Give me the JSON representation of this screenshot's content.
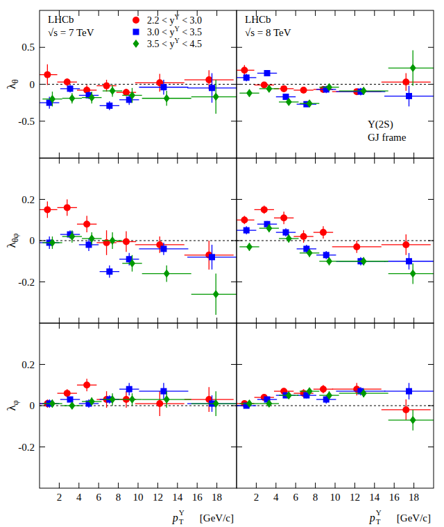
{
  "chart_data": [
    {
      "type": "scatter",
      "ylabel": "λθ",
      "labels": [
        "LHCb",
        "√s = 7 TeV"
      ],
      "legend": "top-right",
      "tick_labels": "y",
      "xlim": [
        0,
        20
      ],
      "xticks": [
        2,
        4,
        6,
        8,
        10,
        12,
        14,
        16,
        18
      ],
      "ylim": [
        -1,
        1
      ],
      "yticks": [
        -0.5,
        0,
        0.5
      ],
      "reference": 0,
      "series": [
        {
          "name": "2.2 < yΥ < 3.0",
          "color": "#ff0000",
          "marker": "circle",
          "x": [
            0.8,
            2.8,
            4.8,
            6.8,
            8.8,
            12.2,
            17.2
          ],
          "x_errors": [
            1,
            1,
            1,
            1,
            1,
            2.5,
            2.5
          ],
          "values": [
            0.13,
            0.03,
            -0.08,
            -0.02,
            -0.11,
            0.02,
            0.06
          ],
          "y_errors": [
            0.14,
            0.05,
            0.07,
            0.08,
            0.05,
            0.12,
            0.13
          ]
        },
        {
          "name": "3.0 < yΥ < 3.5",
          "color": "#0000ff",
          "marker": "square",
          "x": [
            1.0,
            3.1,
            5.0,
            7.1,
            9.1,
            12.6,
            17.5
          ],
          "x_errors": [
            1,
            1,
            1,
            1,
            1,
            2.5,
            2.5
          ],
          "values": [
            -0.25,
            -0.06,
            -0.15,
            -0.29,
            -0.21,
            -0.04,
            -0.05
          ],
          "y_errors": [
            0.08,
            0.05,
            0.05,
            0.06,
            0.07,
            0.1,
            0.2
          ]
        },
        {
          "name": "3.5 < yΥ < 4.5",
          "color": "#009900",
          "marker": "diamond",
          "x": [
            1.3,
            3.3,
            5.3,
            7.4,
            9.4,
            12.9,
            17.9
          ],
          "x_errors": [
            1,
            1,
            1,
            1,
            1,
            2.5,
            2.5
          ],
          "values": [
            -0.2,
            -0.19,
            -0.18,
            -0.09,
            -0.15,
            -0.19,
            -0.17
          ],
          "y_errors": [
            0.1,
            0.07,
            0.08,
            0.08,
            0.1,
            0.1,
            0.23
          ]
        }
      ]
    },
    {
      "type": "scatter",
      "labels": [
        "LHCb",
        "√s = 8 TeV"
      ],
      "notes": [
        "Υ(2S)",
        "GJ frame"
      ],
      "tick_labels": false,
      "xlim": [
        0,
        20
      ],
      "xticks": [
        2,
        4,
        6,
        8,
        10,
        12,
        14,
        16,
        18
      ],
      "ylim": [
        -1,
        1
      ],
      "yticks": [
        -0.5,
        0,
        0.5
      ],
      "reference": 0,
      "series": [
        {
          "color": "#ff0000",
          "marker": "circle",
          "x": [
            0.8,
            2.8,
            4.8,
            6.8,
            8.8,
            12.2,
            17.2
          ],
          "x_errors": [
            1,
            1,
            1,
            1,
            1,
            2.5,
            2.5
          ],
          "values": [
            0.19,
            -0.01,
            -0.06,
            -0.08,
            -0.07,
            -0.1,
            0.03
          ],
          "y_errors": [
            0.07,
            0.04,
            0.04,
            0.04,
            0.04,
            0.04,
            0.12
          ]
        },
        {
          "color": "#0000ff",
          "marker": "square",
          "x": [
            1.0,
            3.1,
            5.0,
            7.1,
            9.1,
            12.6,
            17.5
          ],
          "x_errors": [
            1,
            1,
            1,
            1,
            1,
            2.5,
            2.5
          ],
          "values": [
            0.09,
            0.15,
            -0.17,
            -0.27,
            -0.07,
            -0.1,
            -0.16
          ],
          "y_errors": [
            0.05,
            0.04,
            0.03,
            0.03,
            0.05,
            0.05,
            0.14
          ]
        },
        {
          "color": "#009900",
          "marker": "diamond",
          "x": [
            1.3,
            3.3,
            5.3,
            7.4,
            9.4,
            12.9,
            17.9
          ],
          "x_errors": [
            1,
            1,
            1,
            1,
            1,
            2.5,
            2.5
          ],
          "values": [
            -0.12,
            -0.06,
            -0.24,
            -0.26,
            -0.04,
            -0.09,
            0.22
          ],
          "y_errors": [
            0.05,
            0.03,
            0.03,
            0.04,
            0.04,
            0.05,
            0.24
          ]
        }
      ]
    },
    {
      "type": "scatter",
      "ylabel": "λθφ",
      "tick_labels": "y",
      "xlim": [
        0,
        20
      ],
      "xticks": [
        2,
        4,
        6,
        8,
        10,
        12,
        14,
        16,
        18
      ],
      "ylim": [
        -0.4,
        0.4
      ],
      "yticks": [
        -0.2,
        0,
        0.2
      ],
      "reference": 0,
      "series": [
        {
          "color": "#ff0000",
          "marker": "circle",
          "x": [
            0.8,
            2.8,
            4.8,
            6.8,
            8.8,
            12.2,
            17.2
          ],
          "x_errors": [
            1,
            1,
            1,
            1,
            1,
            2.5,
            2.5
          ],
          "values": [
            0.15,
            0.16,
            0.08,
            -0.01,
            -0.005,
            -0.02,
            -0.07
          ],
          "y_errors": [
            0.04,
            0.04,
            0.04,
            0.06,
            0.05,
            0.04,
            0.07
          ]
        },
        {
          "color": "#0000ff",
          "marker": "square",
          "x": [
            1.0,
            3.1,
            5.0,
            7.1,
            9.1,
            12.6,
            17.5
          ],
          "x_errors": [
            1,
            1,
            1,
            1,
            1,
            2.5,
            2.5
          ],
          "values": [
            -0.01,
            0.03,
            -0.02,
            -0.15,
            -0.09,
            -0.04,
            -0.08
          ],
          "y_errors": [
            0.03,
            0.02,
            0.03,
            0.03,
            0.03,
            0.03,
            0.06
          ]
        },
        {
          "color": "#009900",
          "marker": "diamond",
          "x": [
            1.3,
            3.3,
            5.3,
            7.4,
            9.4,
            12.9,
            17.9
          ],
          "x_errors": [
            1,
            1,
            1,
            1,
            1,
            2.5,
            2.5
          ],
          "values": [
            -0.01,
            0.02,
            0.01,
            0,
            -0.11,
            -0.16,
            -0.26
          ],
          "y_errors": [
            0.03,
            0.03,
            0.03,
            0.04,
            0.04,
            0.04,
            0.1
          ]
        }
      ]
    },
    {
      "type": "scatter",
      "tick_labels": false,
      "xlim": [
        0,
        20
      ],
      "xticks": [
        2,
        4,
        6,
        8,
        10,
        12,
        14,
        16,
        18
      ],
      "ylim": [
        -0.4,
        0.4
      ],
      "yticks": [
        -0.2,
        0,
        0.2
      ],
      "reference": 0,
      "series": [
        {
          "color": "#ff0000",
          "marker": "circle",
          "x": [
            0.8,
            2.8,
            4.8,
            6.8,
            8.8,
            12.2,
            17.2
          ],
          "x_errors": [
            1,
            1,
            1,
            1,
            1,
            2.5,
            2.5
          ],
          "values": [
            0.1,
            0.15,
            0.11,
            0.02,
            0.04,
            -0.03,
            -0.02
          ],
          "y_errors": [
            0.02,
            0.02,
            0.03,
            0.03,
            0.03,
            0.03,
            0.05
          ]
        },
        {
          "color": "#0000ff",
          "marker": "square",
          "x": [
            1.0,
            3.1,
            5.0,
            7.1,
            9.1,
            12.6,
            17.5
          ],
          "x_errors": [
            1,
            1,
            1,
            1,
            1,
            2.5,
            2.5
          ],
          "values": [
            0.05,
            0.08,
            0.04,
            -0.04,
            -0.07,
            -0.1,
            -0.1
          ],
          "y_errors": [
            0.02,
            0.015,
            0.02,
            0.02,
            0.02,
            0.02,
            0.04
          ]
        },
        {
          "color": "#009900",
          "marker": "diamond",
          "x": [
            1.3,
            3.3,
            5.3,
            7.4,
            9.4,
            12.9,
            17.9
          ],
          "x_errors": [
            1,
            1,
            1,
            1,
            1,
            2.5,
            2.5
          ],
          "values": [
            -0.03,
            0.06,
            0.01,
            -0.06,
            -0.1,
            -0.1,
            -0.16
          ],
          "y_errors": [
            0.02,
            0.02,
            0.02,
            0.02,
            0.02,
            0.02,
            0.05
          ]
        }
      ]
    },
    {
      "type": "scatter",
      "ylabel": "λφ",
      "tick_labels": true,
      "xlabel": {
        "text": "p",
        "sub": "T",
        "sup": "Υ",
        "unit": "[GeV/c]"
      },
      "xlim": [
        0,
        20
      ],
      "xticks": [
        2,
        4,
        6,
        8,
        10,
        12,
        14,
        16,
        18
      ],
      "ylim": [
        -0.4,
        0.4
      ],
      "yticks": [
        -0.2,
        0,
        0.2
      ],
      "reference": 0,
      "series": [
        {
          "color": "#ff0000",
          "marker": "circle",
          "x": [
            0.8,
            2.8,
            4.8,
            6.8,
            8.8,
            12.2,
            17.2
          ],
          "x_errors": [
            1,
            1,
            1,
            1,
            1,
            2.5,
            2.5
          ],
          "values": [
            0.01,
            0.06,
            0.1,
            0.03,
            0.03,
            0.01,
            0.03
          ],
          "y_errors": [
            0.02,
            0.02,
            0.03,
            0.04,
            0.04,
            0.06,
            0.06
          ]
        },
        {
          "color": "#0000ff",
          "marker": "square",
          "x": [
            1.0,
            3.1,
            5.0,
            7.1,
            9.1,
            12.6,
            17.5
          ],
          "x_errors": [
            1,
            1,
            1,
            1,
            1,
            2.5,
            2.5
          ],
          "values": [
            0.01,
            0.03,
            0.01,
            0.03,
            0.08,
            0.07,
            0.01
          ],
          "y_errors": [
            0.02,
            0.01,
            0.02,
            0.02,
            0.03,
            0.04,
            0.04
          ]
        },
        {
          "color": "#009900",
          "marker": "diamond",
          "x": [
            1.3,
            3.3,
            5.3,
            7.4,
            9.4,
            12.9,
            17.9
          ],
          "x_errors": [
            1,
            1,
            1,
            1,
            1,
            2.5,
            2.5
          ],
          "values": [
            0.01,
            0,
            0.02,
            0.03,
            0.03,
            0.03,
            0.01
          ],
          "y_errors": [
            0.02,
            0.015,
            0.02,
            0.03,
            0.03,
            0.04,
            0.06
          ]
        }
      ]
    },
    {
      "type": "scatter",
      "tick_labels": "x",
      "xlabel": {
        "text": "p",
        "sub": "T",
        "sup": "Υ",
        "unit": "[GeV/c]"
      },
      "xlim": [
        0,
        20
      ],
      "xticks": [
        2,
        4,
        6,
        8,
        10,
        12,
        14,
        16,
        18
      ],
      "ylim": [
        -0.4,
        0.4
      ],
      "yticks": [
        -0.2,
        0,
        0.2
      ],
      "reference": 0,
      "series": [
        {
          "color": "#ff0000",
          "marker": "circle",
          "x": [
            0.8,
            2.8,
            4.8,
            6.8,
            8.8,
            12.2,
            17.2
          ],
          "x_errors": [
            1,
            1,
            1,
            1,
            1,
            2.5,
            2.5
          ],
          "values": [
            0.01,
            0.04,
            0.07,
            0.06,
            0.08,
            0.08,
            -0.02
          ],
          "y_errors": [
            0.015,
            0.01,
            0.015,
            0.02,
            0.02,
            0.03,
            0.05
          ]
        },
        {
          "color": "#0000ff",
          "marker": "square",
          "x": [
            1.0,
            3.1,
            5.0,
            7.1,
            9.1,
            12.6,
            17.5
          ],
          "x_errors": [
            1,
            1,
            1,
            1,
            1,
            2.5,
            2.5
          ],
          "values": [
            0,
            0.03,
            0.05,
            0.05,
            0.03,
            0.07,
            0.07
          ],
          "y_errors": [
            0.01,
            0.01,
            0.01,
            0.015,
            0.02,
            0.02,
            0.04
          ]
        },
        {
          "color": "#009900",
          "marker": "diamond",
          "x": [
            1.3,
            3.3,
            5.3,
            7.4,
            9.4,
            12.9,
            17.9
          ],
          "x_errors": [
            1,
            1,
            1,
            1,
            1,
            2.5,
            2.5
          ],
          "values": [
            0.01,
            0.01,
            0.05,
            0.07,
            0.05,
            0.06,
            -0.07
          ],
          "y_errors": [
            0.01,
            0.01,
            0.015,
            0.015,
            0.02,
            0.02,
            0.05
          ]
        }
      ]
    }
  ]
}
